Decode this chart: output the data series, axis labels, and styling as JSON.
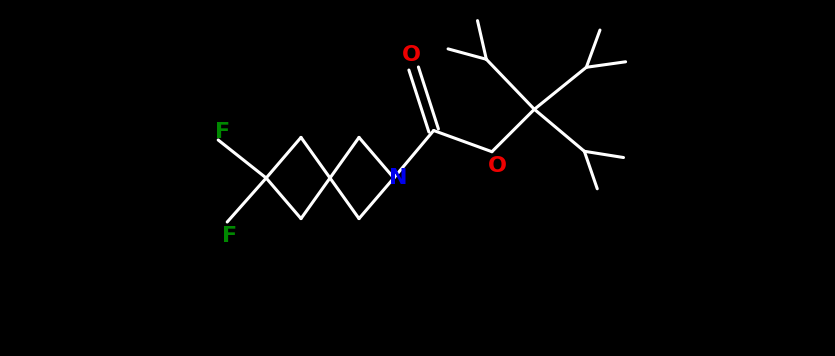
{
  "background_color": "#000000",
  "bond_color": "#ffffff",
  "atom_colors": {
    "N": "#0000ee",
    "O": "#ee0000",
    "F": "#008800"
  },
  "figsize": [
    8.35,
    3.56
  ],
  "dpi": 100,
  "lw": 2.2,
  "fontsize": 16
}
